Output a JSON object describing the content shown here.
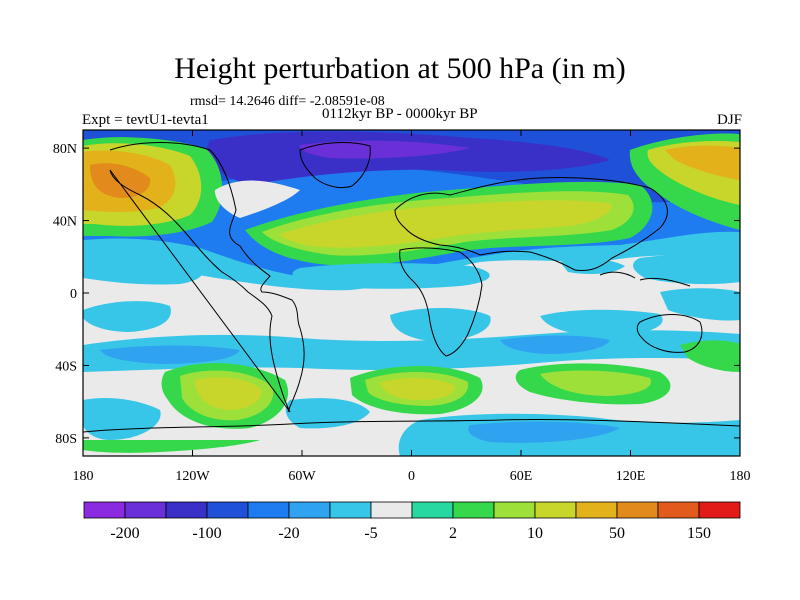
{
  "map": {
    "title": "Height perturbation at 500 hPa (in m)",
    "stats_line": "rmsd= 14.2646 diff= -2.08591e-08",
    "period_line": "0112kyr BP - 0000kyr BP",
    "experiment": "Expt = tevtU1-tevta1",
    "season": "DJF",
    "projection": "cylindrical-equidistant",
    "lon_range": [
      -180,
      180
    ],
    "lat_range": [
      -90,
      90
    ],
    "lat_ticks": [
      {
        "label": "80N",
        "lat": 80
      },
      {
        "label": "40N",
        "lat": 40
      },
      {
        "label": "0",
        "lat": 0
      },
      {
        "label": "40S",
        "lat": -40
      },
      {
        "label": "80S",
        "lat": -80
      }
    ],
    "lon_ticks": [
      {
        "label": "180",
        "lon": -180
      },
      {
        "label": "120W",
        "lon": -120
      },
      {
        "label": "60W",
        "lon": -60
      },
      {
        "label": "0",
        "lon": 0
      },
      {
        "label": "60E",
        "lon": 60
      },
      {
        "label": "120E",
        "lon": 120
      },
      {
        "label": "180",
        "lon": 180
      }
    ]
  },
  "colorbar": {
    "colors": [
      "#8a2be2",
      "#6a2fd8",
      "#3a30c8",
      "#1f50d8",
      "#1e7cf0",
      "#2fa2f0",
      "#38c6e8",
      "#eaeaea",
      "#27d9a0",
      "#35d84b",
      "#9de03a",
      "#c8d52a",
      "#e3b21a",
      "#e28a1b",
      "#e35a1d",
      "#e21a18"
    ],
    "labels": [
      {
        "text": "-200",
        "boundary": 1
      },
      {
        "text": "-100",
        "boundary": 3
      },
      {
        "text": "-20",
        "boundary": 5
      },
      {
        "text": "-5",
        "boundary": 7
      },
      {
        "text": "2",
        "boundary": 9
      },
      {
        "text": "10",
        "boundary": 11
      },
      {
        "text": "50",
        "boundary": 13
      },
      {
        "text": "150",
        "boundary": 15
      }
    ]
  },
  "field_regions": [
    {
      "name": "arctic-negative-band",
      "fill": "#1f50d8"
    },
    {
      "name": "arctic-core",
      "fill": "#3a30c8"
    },
    {
      "name": "north-pacific-positive",
      "fill": "#c8d52a"
    },
    {
      "name": "north-pacific-core",
      "fill": "#e3b21a"
    },
    {
      "name": "north-atlantic-eurasia-positive",
      "fill": "#c8d52a"
    },
    {
      "name": "southern-ocean-positive-1",
      "fill": "#9de03a"
    },
    {
      "name": "southern-ocean-positive-2",
      "fill": "#c8d52a"
    },
    {
      "name": "southern-ocean-positive-3",
      "fill": "#35d84b"
    },
    {
      "name": "subtropical-negative",
      "fill": "#38c6e8"
    }
  ]
}
